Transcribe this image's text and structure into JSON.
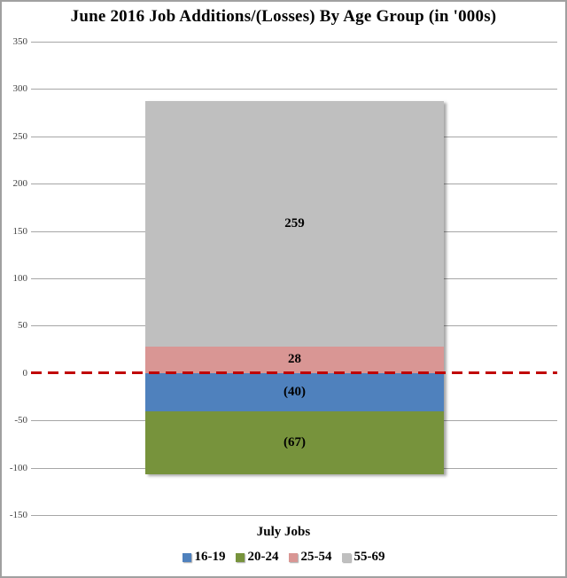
{
  "chart_data": {
    "type": "bar",
    "stacked": true,
    "title": "June 2016 Job Additions/(Losses) By Age Group (in '000s)",
    "xlabel": "July Jobs",
    "categories": [
      "July Jobs"
    ],
    "series": [
      {
        "name": "16-19",
        "values": [
          -40
        ],
        "data_label": "(40)",
        "color": "#4F81BD"
      },
      {
        "name": "20-24",
        "values": [
          -67
        ],
        "data_label": "(67)",
        "color": "#77933C"
      },
      {
        "name": "25-54",
        "values": [
          28
        ],
        "data_label": "28",
        "color": "#D99694"
      },
      {
        "name": "55-69",
        "values": [
          259
        ],
        "data_label": "259",
        "color": "#BFBFBF"
      }
    ],
    "ylim": [
      -150,
      350
    ],
    "yticks": [
      350,
      300,
      250,
      200,
      150,
      100,
      50,
      0,
      -50,
      -100,
      -150
    ],
    "grid": true,
    "gridline_color": "#A6A6A6",
    "zero_line": {
      "value": 0,
      "style": "dashed",
      "color": "#C00000"
    },
    "legend_position": "bottom",
    "legend": [
      "16-19",
      "20-24",
      "25-54",
      "55-69"
    ]
  }
}
